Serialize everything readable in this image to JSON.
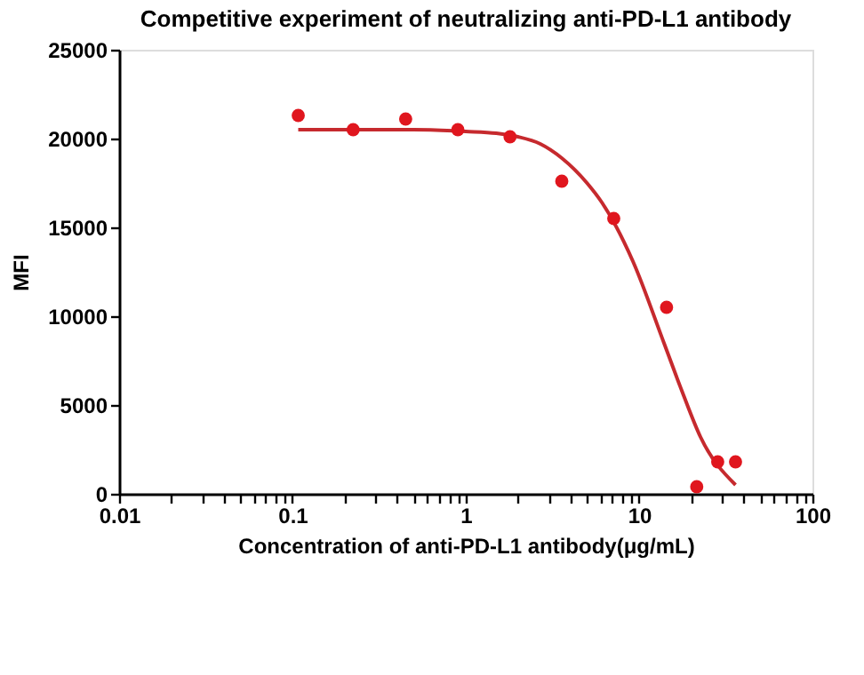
{
  "chart_data": {
    "type": "scatter",
    "title": "Competitive experiment of neutralizing anti-PD-L1 antibody",
    "xlabel": "Concentration of anti-PD-L1 antibody(μg/mL)",
    "ylabel": "MFI",
    "log": "x",
    "grid": false,
    "xlim": [
      0.01,
      100
    ],
    "xticks": [
      0.01,
      {
        "value": 0.02,
        "label": null
      },
      {
        "value": 0.03,
        "label": null
      },
      {
        "value": 0.04,
        "label": null
      },
      {
        "value": 0.05,
        "label": null
      },
      {
        "value": 0.06,
        "label": null
      },
      {
        "value": 0.07,
        "label": null
      },
      {
        "value": 0.08,
        "label": null
      },
      {
        "value": 0.09,
        "label": null
      },
      0.1,
      {
        "value": 0.2,
        "label": null
      },
      {
        "value": 0.3,
        "label": null
      },
      {
        "value": 0.4,
        "label": null
      },
      {
        "value": 0.5,
        "label": null
      },
      {
        "value": 0.6,
        "label": null
      },
      {
        "value": 0.7,
        "label": null
      },
      {
        "value": 0.8,
        "label": null
      },
      {
        "value": 0.9,
        "label": null
      },
      1,
      {
        "value": 2,
        "label": null
      },
      {
        "value": 3,
        "label": null
      },
      {
        "value": 4,
        "label": null
      },
      {
        "value": 5,
        "label": null
      },
      {
        "value": 6,
        "label": null
      },
      {
        "value": 7,
        "label": null
      },
      {
        "value": 8,
        "label": null
      },
      {
        "value": 9,
        "label": null
      },
      10,
      {
        "value": 20,
        "label": null
      },
      {
        "value": 30,
        "label": null
      },
      {
        "value": 40,
        "label": null
      },
      {
        "value": 50,
        "label": null
      },
      {
        "value": 60,
        "label": null
      },
      {
        "value": 70,
        "label": null
      },
      {
        "value": 80,
        "label": null
      },
      {
        "value": 90,
        "label": null
      },
      100
    ],
    "ylim": [
      0,
      25000
    ],
    "yticks": [
      0,
      5000,
      10000,
      15000,
      20000,
      25000
    ],
    "series": [
      {
        "type": "line",
        "color": "#c62a2e",
        "marker": "none",
        "line_style": "solid",
        "x": [
          0.108,
          0.3,
          0.5,
          1,
          1.5,
          2,
          2.69,
          3.58,
          5,
          6.1,
          9.2,
          13.9,
          17.8,
          22.6,
          36
        ],
        "values": [
          20500,
          20500,
          20500,
          20400,
          20300,
          20100,
          19700,
          18900,
          17500,
          16400,
          13100,
          8500,
          5700,
          3200,
          500
        ]
      },
      {
        "type": "scatter",
        "color": "#e0161e",
        "marker": "circle",
        "x": [
          0.108,
          0.224,
          0.45,
          0.9,
          1.8,
          3.58,
          7.14,
          14.4,
          21.5,
          28.4,
          36
        ],
        "values": [
          21300,
          20500,
          21100,
          20500,
          20100,
          17600,
          15500,
          10500,
          400,
          1800,
          1800
        ]
      }
    ]
  }
}
